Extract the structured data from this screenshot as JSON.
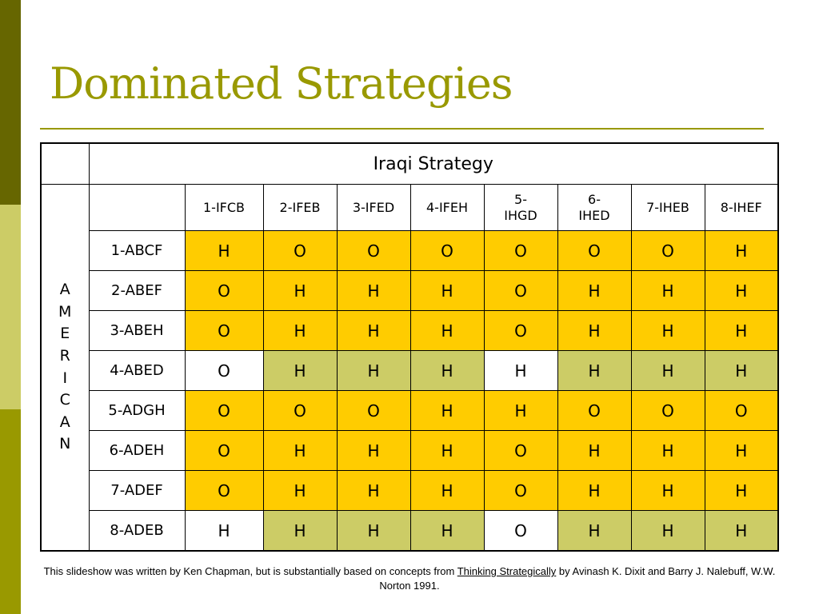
{
  "slide": {
    "title": "Dominated Strategies",
    "footer": {
      "before": "This slideshow was written by Ken Chapman, but is substantially based on concepts from ",
      "book": "Thinking Strategically",
      "after": " by Avinash K. Dixit and Barry J. Nalebuff, W.W. Norton 1991."
    }
  },
  "table": {
    "column_group": "Iraqi Strategy",
    "row_group_letters": [
      "A",
      "M",
      "E",
      "R",
      "I",
      "C",
      "A",
      "N"
    ],
    "columns": [
      {
        "l1": "1-IFCB",
        "l2": ""
      },
      {
        "l1": "2-IFEB",
        "l2": ""
      },
      {
        "l1": "3-IFED",
        "l2": ""
      },
      {
        "l1": "4-IFEH",
        "l2": ""
      },
      {
        "l1": "5-",
        "l2": "IHGD"
      },
      {
        "l1": "6-",
        "l2": "IHED"
      },
      {
        "l1": "7-IHEB",
        "l2": ""
      },
      {
        "l1": "8-IHEF",
        "l2": ""
      }
    ],
    "rows": [
      {
        "label": "1-ABCF",
        "cells": [
          "H",
          "O",
          "O",
          "O",
          "O",
          "O",
          "O",
          "H"
        ],
        "fills": [
          "y",
          "y",
          "y",
          "y",
          "y",
          "y",
          "y",
          "y"
        ]
      },
      {
        "label": "2-ABEF",
        "cells": [
          "O",
          "H",
          "H",
          "H",
          "O",
          "H",
          "H",
          "H"
        ],
        "fills": [
          "y",
          "y",
          "y",
          "y",
          "y",
          "y",
          "y",
          "y"
        ]
      },
      {
        "label": "3-ABEH",
        "cells": [
          "O",
          "H",
          "H",
          "H",
          "O",
          "H",
          "H",
          "H"
        ],
        "fills": [
          "y",
          "y",
          "y",
          "y",
          "y",
          "y",
          "y",
          "y"
        ]
      },
      {
        "label": "4-ABED",
        "cells": [
          "O",
          "H",
          "H",
          "H",
          "H",
          "H",
          "H",
          "H"
        ],
        "fills": [
          "w",
          "g",
          "g",
          "g",
          "w",
          "g",
          "g",
          "g"
        ]
      },
      {
        "label": "5-ADGH",
        "cells": [
          "O",
          "O",
          "O",
          "H",
          "H",
          "O",
          "O",
          "O"
        ],
        "fills": [
          "y",
          "y",
          "y",
          "y",
          "y",
          "y",
          "y",
          "y"
        ]
      },
      {
        "label": "6-ADEH",
        "cells": [
          "O",
          "H",
          "H",
          "H",
          "O",
          "H",
          "H",
          "H"
        ],
        "fills": [
          "y",
          "y",
          "y",
          "y",
          "y",
          "y",
          "y",
          "y"
        ]
      },
      {
        "label": "7-ADEF",
        "cells": [
          "O",
          "H",
          "H",
          "H",
          "O",
          "H",
          "H",
          "H"
        ],
        "fills": [
          "y",
          "y",
          "y",
          "y",
          "y",
          "y",
          "y",
          "y"
        ]
      },
      {
        "label": "8-ADEB",
        "cells": [
          "H",
          "H",
          "H",
          "H",
          "O",
          "H",
          "H",
          "H"
        ],
        "fills": [
          "w",
          "g",
          "g",
          "g",
          "w",
          "g",
          "g",
          "g"
        ]
      }
    ],
    "colors": {
      "y": "#ffcc00",
      "g": "#cccc66",
      "w": "#ffffff"
    }
  }
}
